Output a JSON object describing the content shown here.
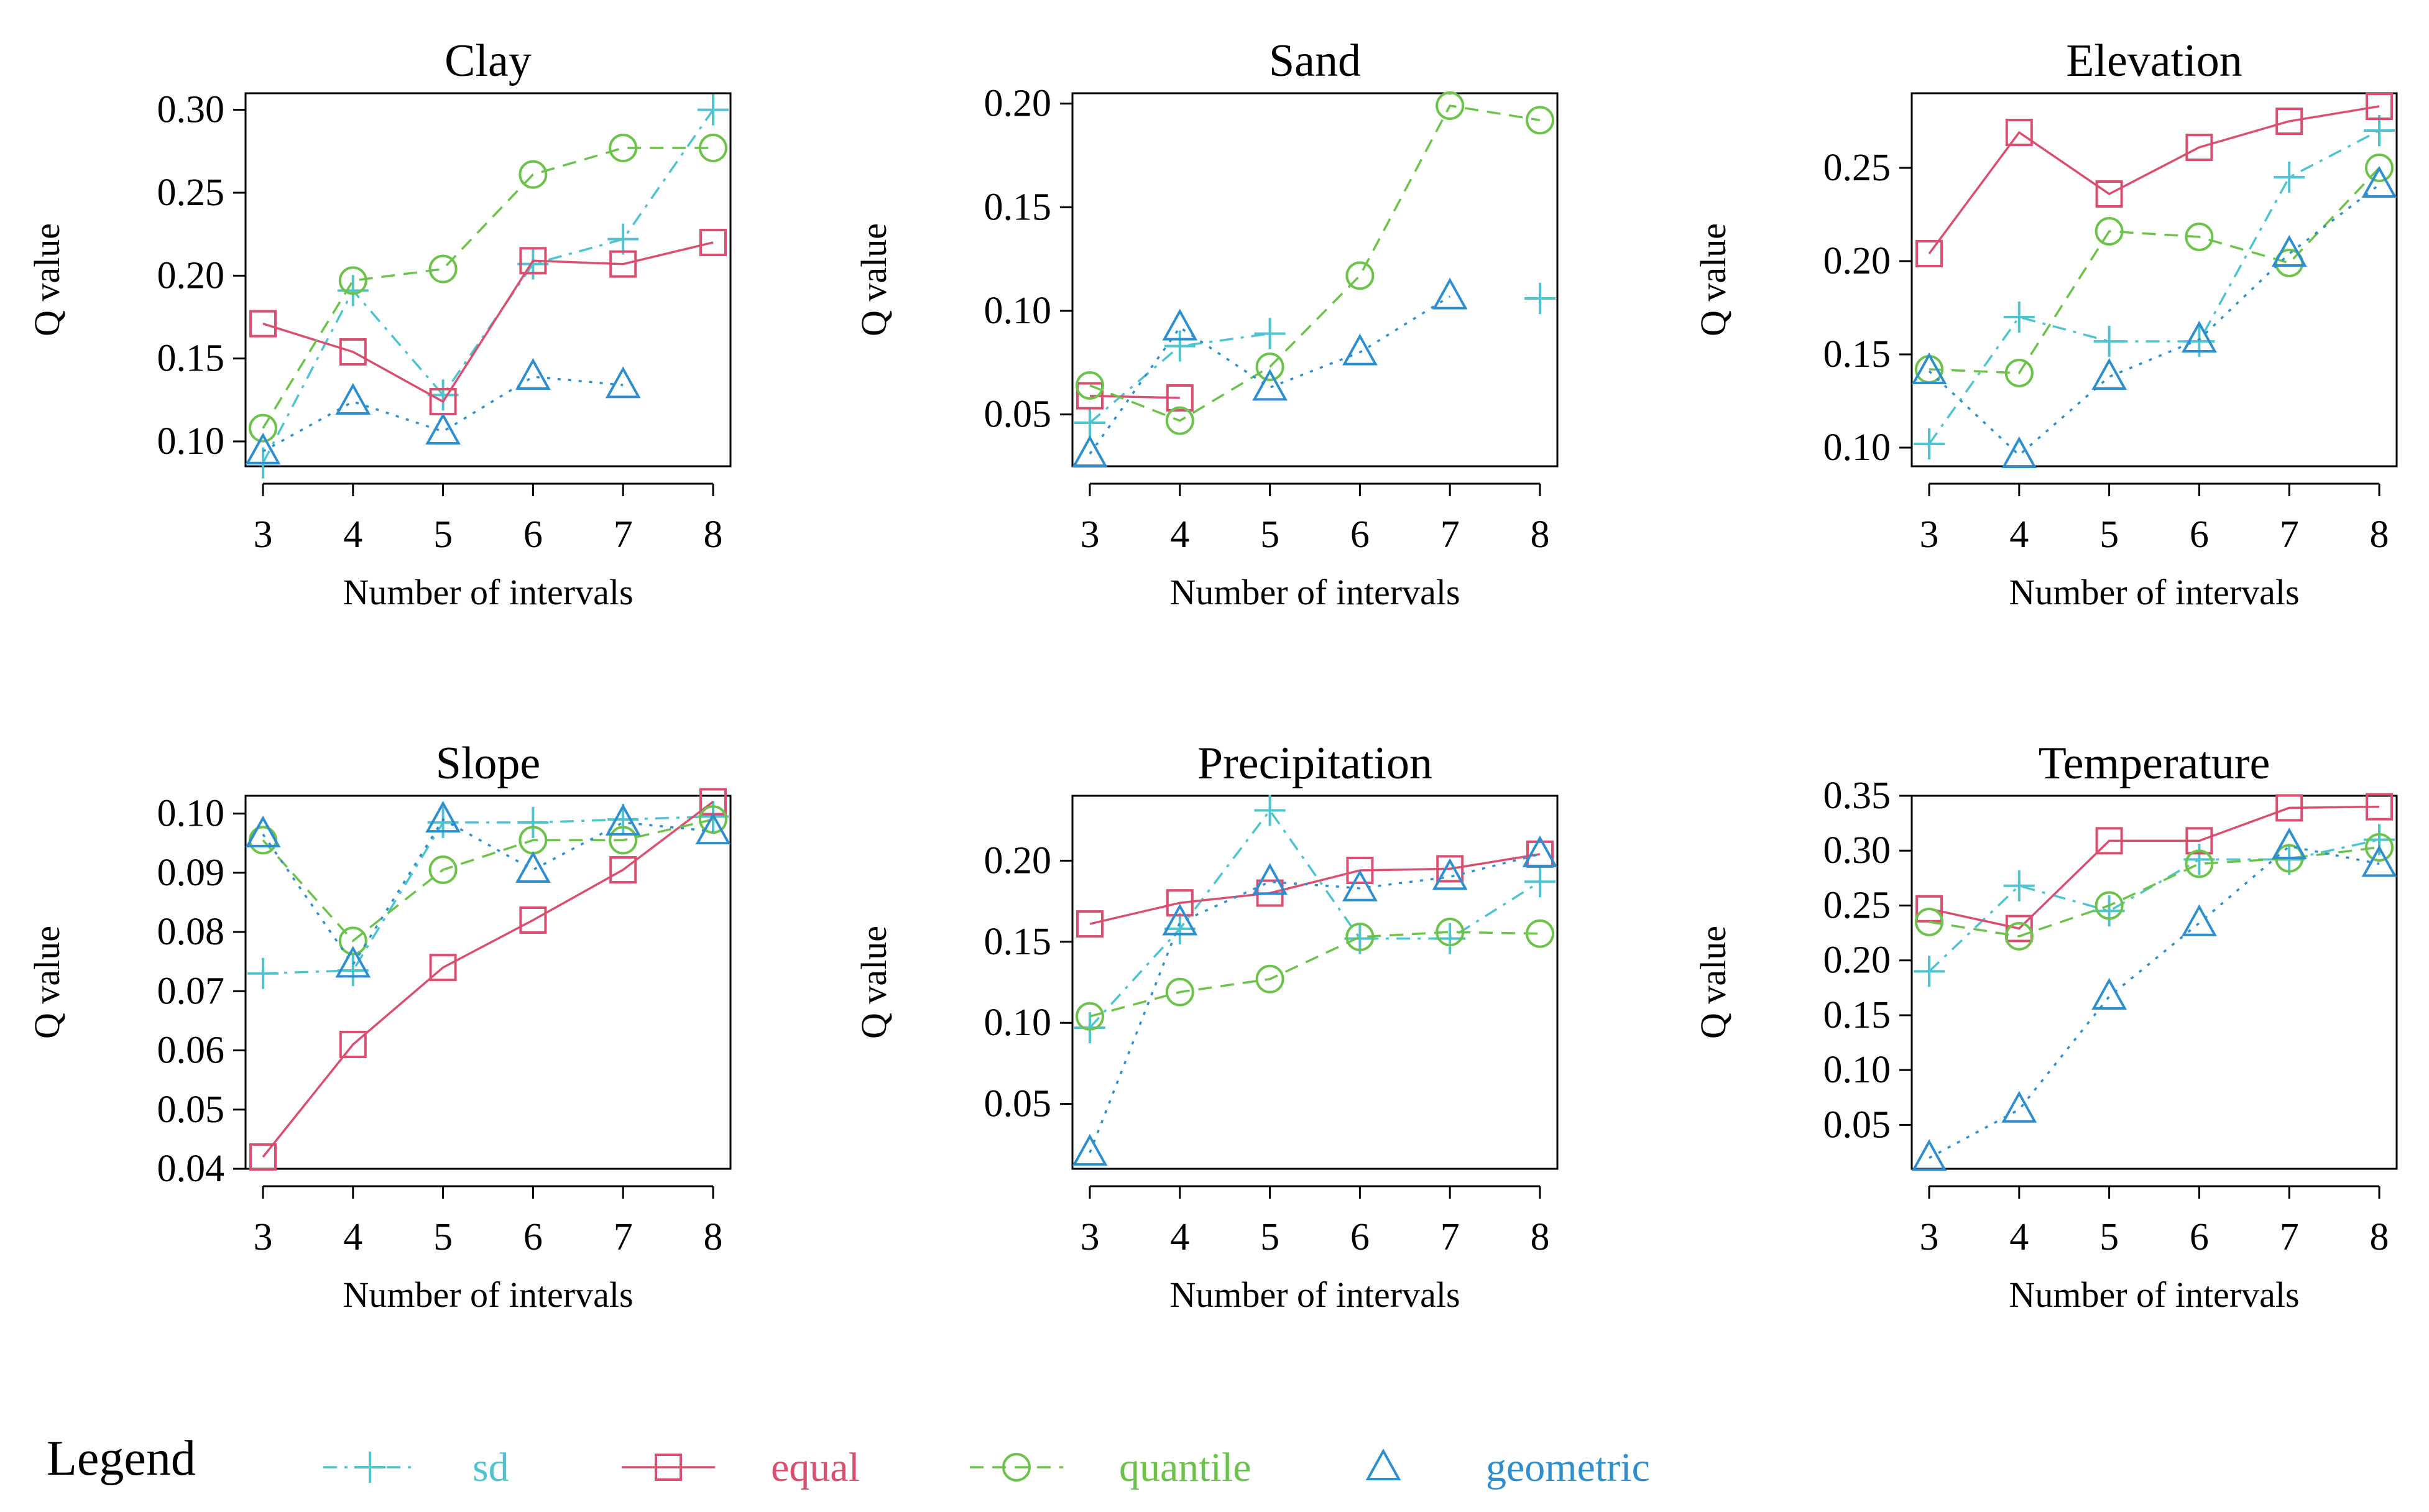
{
  "colors": {
    "sd": "#4fc4cf",
    "equal": "#d94f70",
    "quantile": "#6cc24a",
    "geometric": "#2f8fce"
  },
  "legend": {
    "title": "Legend",
    "items": [
      {
        "key": "sd",
        "label": "sd",
        "marker": "plus",
        "dash": "dashdot"
      },
      {
        "key": "equal",
        "label": "equal",
        "marker": "square",
        "dash": "solid"
      },
      {
        "key": "quantile",
        "label": "quantile",
        "marker": "circle",
        "dash": "dashed"
      },
      {
        "key": "geometric",
        "label": "geometric",
        "marker": "triangle",
        "dash": "dotted"
      }
    ]
  },
  "chart_data": [
    {
      "type": "line",
      "title": "Clay",
      "xlabel": "Number of intervals",
      "ylabel": "Q value",
      "x": [
        3,
        4,
        5,
        6,
        7,
        8
      ],
      "ylim": [
        0.085,
        0.31
      ],
      "yticks": [
        0.1,
        0.15,
        0.2,
        0.25,
        0.3
      ],
      "ytick_labels": [
        "0.10",
        "0.15",
        "0.20",
        "0.25",
        "0.30"
      ],
      "series": [
        {
          "key": "sd",
          "values": [
            0.087,
            0.191,
            0.128,
            0.207,
            0.222,
            0.3
          ]
        },
        {
          "key": "equal",
          "values": [
            0.171,
            0.154,
            0.124,
            0.209,
            0.207,
            0.22
          ]
        },
        {
          "key": "quantile",
          "values": [
            0.108,
            0.197,
            0.204,
            0.261,
            0.277,
            0.277
          ]
        },
        {
          "key": "geometric",
          "values": [
            0.094,
            0.124,
            0.106,
            0.139,
            0.134,
            null
          ]
        }
      ]
    },
    {
      "type": "line",
      "title": "Sand",
      "xlabel": "Number of intervals",
      "ylabel": "Q value",
      "x": [
        3,
        4,
        5,
        6,
        7,
        8
      ],
      "ylim": [
        0.025,
        0.205
      ],
      "yticks": [
        0.05,
        0.1,
        0.15,
        0.2
      ],
      "ytick_labels": [
        "0.05",
        "0.10",
        "0.15",
        "0.20"
      ],
      "series": [
        {
          "key": "sd",
          "values": [
            0.046,
            0.083,
            0.089,
            null,
            null,
            0.106
          ]
        },
        {
          "key": "equal",
          "values": [
            0.059,
            0.058,
            null,
            null,
            null,
            null
          ]
        },
        {
          "key": "quantile",
          "values": [
            0.064,
            0.047,
            0.073,
            0.117,
            0.199,
            0.192
          ]
        },
        {
          "key": "geometric",
          "values": [
            0.031,
            0.092,
            0.063,
            0.08,
            0.107,
            null
          ]
        }
      ]
    },
    {
      "type": "line",
      "title": "Elevation",
      "xlabel": "Number of intervals",
      "ylabel": "Q value",
      "x": [
        3,
        4,
        5,
        6,
        7,
        8
      ],
      "ylim": [
        0.09,
        0.29
      ],
      "yticks": [
        0.1,
        0.15,
        0.2,
        0.25
      ],
      "ytick_labels": [
        "0.10",
        "0.15",
        "0.20",
        "0.25"
      ],
      "series": [
        {
          "key": "sd",
          "values": [
            0.102,
            0.17,
            0.157,
            0.157,
            0.245,
            0.27
          ]
        },
        {
          "key": "equal",
          "values": [
            0.204,
            0.269,
            0.236,
            0.261,
            0.275,
            0.283
          ]
        },
        {
          "key": "quantile",
          "values": [
            0.142,
            0.14,
            0.216,
            0.213,
            0.199,
            0.25
          ]
        },
        {
          "key": "geometric",
          "values": [
            0.141,
            0.096,
            0.138,
            0.158,
            0.204,
            0.241
          ]
        }
      ]
    },
    {
      "type": "line",
      "title": "Slope",
      "xlabel": "Number of intervals",
      "ylabel": "Q value",
      "x": [
        3,
        4,
        5,
        6,
        7,
        8
      ],
      "ylim": [
        0.04,
        0.103
      ],
      "yticks": [
        0.04,
        0.05,
        0.06,
        0.07,
        0.08,
        0.09,
        0.1
      ],
      "ytick_labels": [
        "0.04",
        "0.05",
        "0.06",
        "0.07",
        "0.08",
        "0.09",
        "0.10"
      ],
      "series": [
        {
          "key": "sd",
          "values": [
            0.073,
            0.0735,
            0.0985,
            0.0985,
            0.099,
            0.0995
          ]
        },
        {
          "key": "equal",
          "values": [
            0.042,
            0.061,
            0.074,
            0.082,
            0.0905,
            0.102
          ]
        },
        {
          "key": "quantile",
          "values": [
            0.0955,
            0.0785,
            0.0905,
            0.0955,
            0.0955,
            0.099
          ]
        },
        {
          "key": "geometric",
          "values": [
            0.0965,
            0.0745,
            0.099,
            0.0905,
            0.0985,
            0.097
          ]
        }
      ]
    },
    {
      "type": "line",
      "title": "Precipitation",
      "xlabel": "Number of intervals",
      "ylabel": "Q value",
      "x": [
        3,
        4,
        5,
        6,
        7,
        8
      ],
      "ylim": [
        0.01,
        0.24
      ],
      "yticks": [
        0.05,
        0.1,
        0.15,
        0.2
      ],
      "ytick_labels": [
        "0.05",
        "0.10",
        "0.15",
        "0.20"
      ],
      "series": [
        {
          "key": "sd",
          "values": [
            0.097,
            0.158,
            0.231,
            0.152,
            0.152,
            0.187
          ]
        },
        {
          "key": "equal",
          "values": [
            0.161,
            0.174,
            0.18,
            0.194,
            0.195,
            0.204
          ]
        },
        {
          "key": "quantile",
          "values": [
            0.104,
            0.119,
            0.127,
            0.153,
            0.156,
            0.155
          ]
        },
        {
          "key": "geometric",
          "values": [
            0.02,
            0.162,
            0.187,
            0.183,
            0.19,
            0.204
          ]
        }
      ]
    },
    {
      "type": "line",
      "title": "Temperature",
      "xlabel": "Number of intervals",
      "ylabel": "Q value",
      "x": [
        3,
        4,
        5,
        6,
        7,
        8
      ],
      "ylim": [
        0.01,
        0.35
      ],
      "yticks": [
        0.05,
        0.1,
        0.15,
        0.2,
        0.25,
        0.3,
        0.35
      ],
      "ytick_labels": [
        "0.05",
        "0.10",
        "0.15",
        "0.20",
        "0.25",
        "0.30",
        "0.35"
      ],
      "series": [
        {
          "key": "sd",
          "values": [
            0.19,
            0.268,
            0.245,
            0.292,
            0.292,
            0.31
          ]
        },
        {
          "key": "equal",
          "values": [
            0.247,
            0.229,
            0.309,
            0.309,
            0.339,
            0.34
          ]
        },
        {
          "key": "quantile",
          "values": [
            0.235,
            0.222,
            0.25,
            0.288,
            0.293,
            0.303
          ]
        },
        {
          "key": "geometric",
          "values": [
            0.02,
            0.064,
            0.167,
            0.234,
            0.304,
            0.288
          ]
        }
      ]
    }
  ]
}
